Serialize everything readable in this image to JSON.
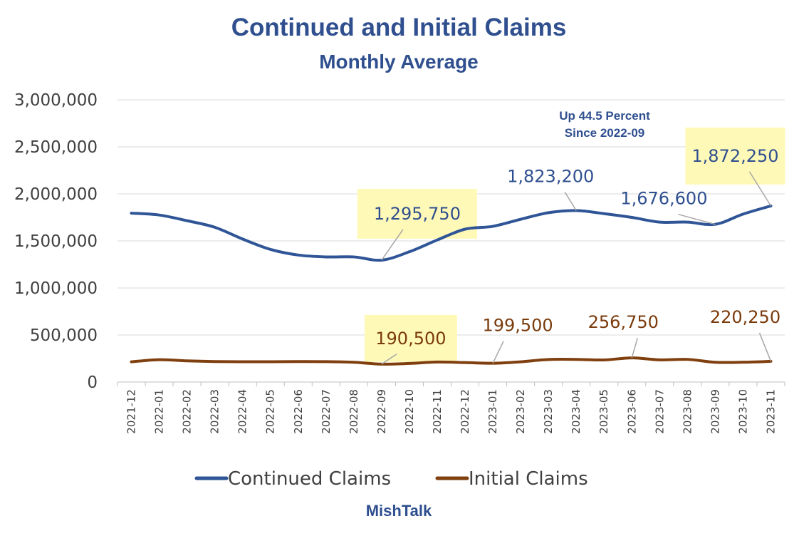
{
  "chart_data": {
    "type": "line",
    "title": "Continued and Initial Claims",
    "subtitle": "Monthly Average",
    "categories": [
      "2021-12",
      "2022-01",
      "2022-02",
      "2022-03",
      "2022-04",
      "2022-05",
      "2022-06",
      "2022-07",
      "2022-08",
      "2022-09",
      "2022-10",
      "2022-11",
      "2022-12",
      "2023-01",
      "2023-02",
      "2023-03",
      "2023-04",
      "2023-05",
      "2023-06",
      "2023-07",
      "2023-08",
      "2023-09",
      "2023-10",
      "2023-11"
    ],
    "y_ticks": [
      "0",
      "500,000",
      "1,000,000",
      "1,500,000",
      "2,000,000",
      "2,500,000",
      "3,000,000"
    ],
    "ylim": [
      0,
      3000000
    ],
    "series": [
      {
        "name": "Continued Claims",
        "color": "#2F5597",
        "values": [
          1795000,
          1775000,
          1715000,
          1645000,
          1520000,
          1410000,
          1350000,
          1330000,
          1330000,
          1295750,
          1385000,
          1510000,
          1625000,
          1655000,
          1730000,
          1800000,
          1823200,
          1790000,
          1750000,
          1700000,
          1700000,
          1676600,
          1785000,
          1872250
        ]
      },
      {
        "name": "Initial Claims",
        "color": "#7F3F0F",
        "values": [
          215000,
          238000,
          225000,
          218000,
          216000,
          216000,
          218000,
          217000,
          210000,
          190500,
          198000,
          213000,
          207000,
          199500,
          215000,
          240000,
          241000,
          235000,
          256750,
          236000,
          241000,
          210000,
          211000,
          220250
        ]
      }
    ],
    "data_labels": [
      {
        "series": 0,
        "index": 9,
        "text": "1,295,750",
        "highlight": true
      },
      {
        "series": 0,
        "index": 16,
        "text": "1,823,200",
        "highlight": false
      },
      {
        "series": 0,
        "index": 21,
        "text": "1,676,600",
        "highlight": false
      },
      {
        "series": 0,
        "index": 23,
        "text": "1,872,250",
        "highlight": true
      },
      {
        "series": 1,
        "index": 9,
        "text": "190,500",
        "highlight": true
      },
      {
        "series": 1,
        "index": 13,
        "text": "199,500",
        "highlight": false
      },
      {
        "series": 1,
        "index": 18,
        "text": "256,750",
        "highlight": false
      },
      {
        "series": 1,
        "index": 23,
        "text": "220,250",
        "highlight": false
      }
    ],
    "annotation": [
      "Up 44.5 Percent",
      "Since 2022-09"
    ],
    "legend": [
      "Continued Claims",
      "Initial Claims"
    ],
    "legend_position": "bottom",
    "grid": true
  },
  "source": "MishTalk"
}
